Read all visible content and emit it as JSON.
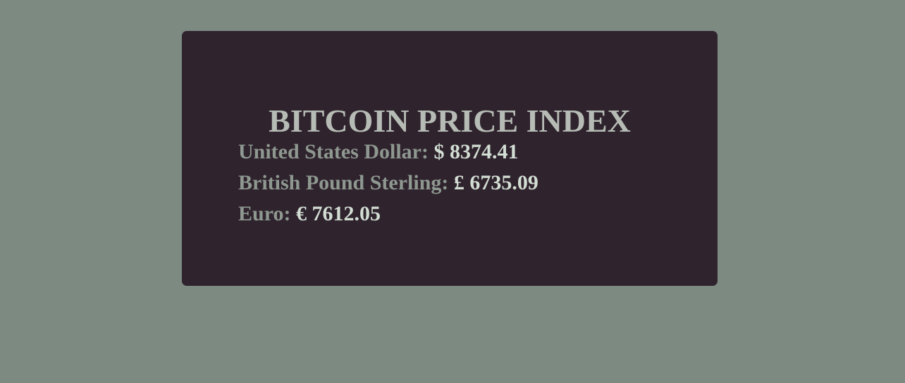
{
  "page": {
    "title": "BITCOIN PRICE INDEX"
  },
  "rates": [
    {
      "label": "United States Dollar:",
      "symbol": "$",
      "value": "8374.41"
    },
    {
      "label": "British Pound Sterling:",
      "symbol": "£",
      "value": "6735.09"
    },
    {
      "label": "Euro:",
      "symbol": "€",
      "value": "7612.05"
    }
  ],
  "colors": {
    "background": "#7d8a82",
    "card": "#2f232d",
    "title": "#b6bcb5",
    "label": "#8e9890",
    "value": "#d2ddd3"
  }
}
